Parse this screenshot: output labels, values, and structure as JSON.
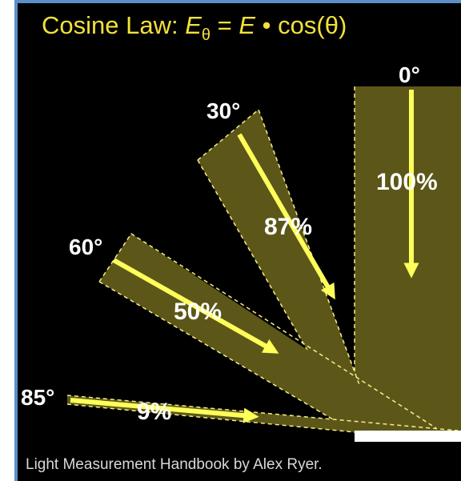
{
  "title": {
    "prefix": "Cosine Law:  ",
    "E": "E",
    "theta": "θ",
    "equals": " = ",
    "E2": "E",
    "dot": " • ",
    "cos": "cos(θ)"
  },
  "beams": [
    {
      "angle_label": "0°",
      "percent_label": "100%"
    },
    {
      "angle_label": "30°",
      "percent_label": "87%"
    },
    {
      "angle_label": "60°",
      "percent_label": "50%"
    },
    {
      "angle_label": "85°",
      "percent_label": "9%"
    }
  ],
  "credit": "Light Measurement Handbook by Alex Ryer.",
  "colors": {
    "background": "#000000",
    "title": "#f2e13a",
    "beam_fill": "#5c5719",
    "arrow": "#ffff5a",
    "dashed": "#f4ef8a",
    "surface": "#ffffff",
    "frame": "#5b8fc7"
  }
}
